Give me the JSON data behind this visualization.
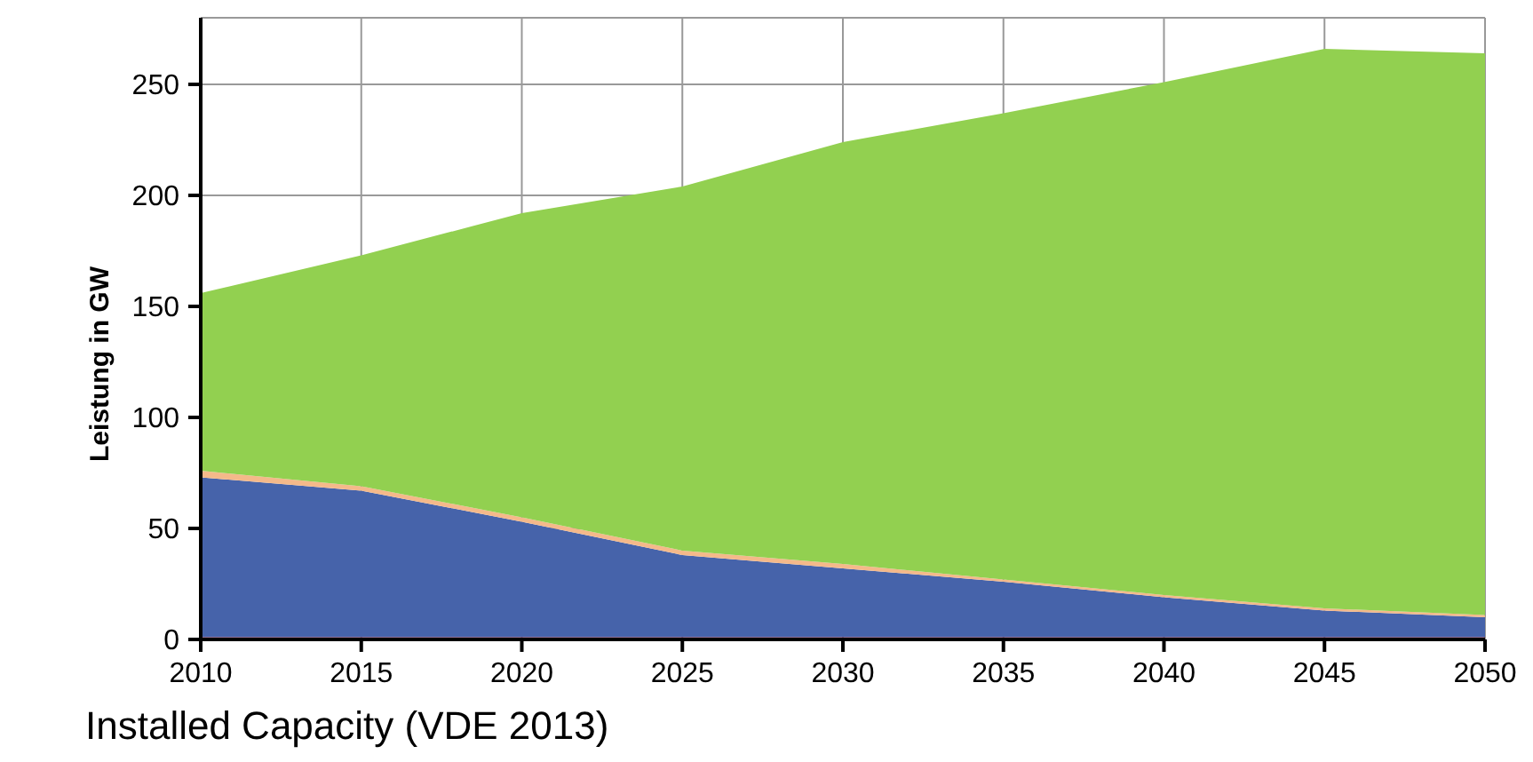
{
  "chart_data": {
    "type": "area",
    "stacked": true,
    "ylabel": "Leistung in GW",
    "annotations": [
      "Installed Capacity (VDE 2013)"
    ],
    "x": [
      2010,
      2015,
      2020,
      2025,
      2030,
      2035,
      2040,
      2045,
      2050
    ],
    "series": [
      {
        "color": "#c00000",
        "values": [
          1,
          1,
          1,
          1,
          1,
          1,
          1,
          1,
          1
        ]
      },
      {
        "color": "#4663aa",
        "values": [
          72,
          66,
          52,
          37,
          31,
          25,
          18,
          12,
          9
        ]
      },
      {
        "color": "#f4b98a",
        "values": [
          3,
          2,
          2,
          2,
          2,
          1,
          1,
          1,
          1
        ]
      },
      {
        "color": "#92d050",
        "values": [
          80,
          104,
          137,
          164,
          190,
          210,
          231,
          252,
          253
        ]
      }
    ],
    "xlim": [
      2010,
      2050
    ],
    "xticks": [
      2010,
      2015,
      2020,
      2025,
      2030,
      2035,
      2040,
      2045,
      2050
    ],
    "ylim": [
      0,
      280
    ],
    "yticks": [
      0,
      50,
      100,
      150,
      200,
      250
    ],
    "grid": true
  }
}
